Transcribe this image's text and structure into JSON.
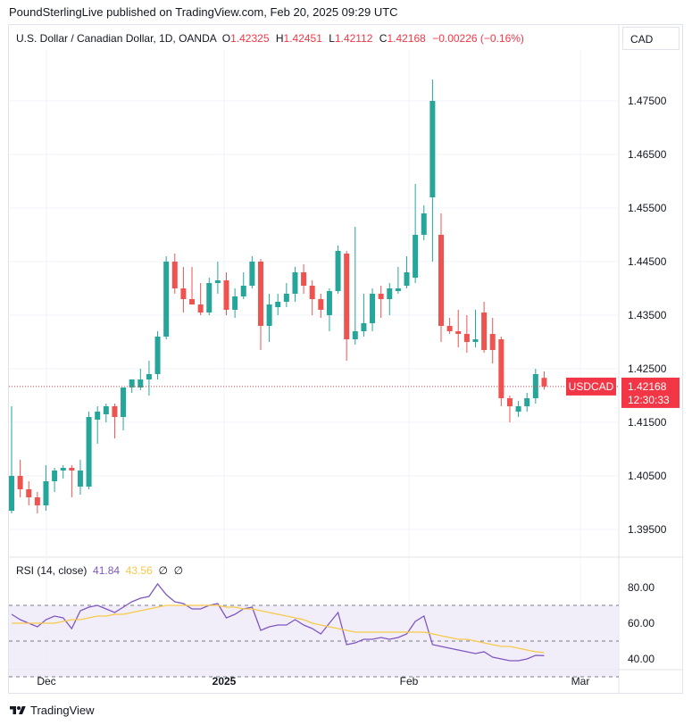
{
  "caption": "PoundSterlingLive published on TradingView.com, Feb 20, 2025 09:29 UTC",
  "legend": {
    "symbol": "U.S. Dollar / Canadian Dollar, 1D, OANDA",
    "o_label": "O",
    "o_value": "1.42325",
    "h_label": "H",
    "h_value": "1.42451",
    "l_label": "L",
    "l_value": "1.42112",
    "c_label": "C",
    "c_value": "1.42168",
    "change": "−0.00226 (−0.16%)"
  },
  "currency_button": "CAD",
  "price_tag": {
    "symbol": "USDCAD",
    "price": "1.42168",
    "countdown": "12:30:33"
  },
  "rsi_legend": {
    "label": "RSI (14, close)",
    "rsi_value": "41.84",
    "ma_value": "43.56",
    "extra1": "∅",
    "extra2": "∅"
  },
  "footer": "TradingView",
  "colors": {
    "up": "#26a69a",
    "down": "#ef5350",
    "rsi": "#7e57c2",
    "rsi_ma": "#f7c948",
    "price_line": "#f23645",
    "band": "#ede7f6"
  },
  "chart_data": [
    {
      "type": "candlestick",
      "title": "U.S. Dollar / Canadian Dollar, 1D, OANDA",
      "y_ticks": [
        "1.47500",
        "1.46500",
        "1.45500",
        "1.44500",
        "1.43500",
        "1.42500",
        "1.41500",
        "1.40500",
        "1.39500"
      ],
      "x_ticks": [
        "Dec",
        "2025",
        "Feb",
        "Mar"
      ],
      "ylim": [
        1.3915,
        1.4835
      ],
      "last_price": 1.42168,
      "candles": [
        {
          "o": 1.3985,
          "h": 1.418,
          "l": 1.398,
          "c": 1.405
        },
        {
          "o": 1.405,
          "h": 1.408,
          "l": 1.401,
          "c": 1.4025
        },
        {
          "o": 1.4025,
          "h": 1.404,
          "l": 1.3995,
          "c": 1.401
        },
        {
          "o": 1.401,
          "h": 1.402,
          "l": 1.398,
          "c": 1.3995
        },
        {
          "o": 1.3995,
          "h": 1.407,
          "l": 1.3985,
          "c": 1.404
        },
        {
          "o": 1.404,
          "h": 1.4065,
          "l": 1.402,
          "c": 1.406
        },
        {
          "o": 1.406,
          "h": 1.407,
          "l": 1.4045,
          "c": 1.4065
        },
        {
          "o": 1.4065,
          "h": 1.407,
          "l": 1.401,
          "c": 1.406
        },
        {
          "o": 1.403,
          "h": 1.408,
          "l": 1.4015,
          "c": 1.406
        },
        {
          "o": 1.403,
          "h": 1.417,
          "l": 1.4025,
          "c": 1.416
        },
        {
          "o": 1.4155,
          "h": 1.418,
          "l": 1.411,
          "c": 1.417
        },
        {
          "o": 1.4165,
          "h": 1.4185,
          "l": 1.415,
          "c": 1.418
        },
        {
          "o": 1.418,
          "h": 1.4185,
          "l": 1.412,
          "c": 1.416
        },
        {
          "o": 1.416,
          "h": 1.421,
          "l": 1.4135,
          "c": 1.4215
        },
        {
          "o": 1.4215,
          "h": 1.423,
          "l": 1.4205,
          "c": 1.423
        },
        {
          "o": 1.4215,
          "h": 1.425,
          "l": 1.421,
          "c": 1.423
        },
        {
          "o": 1.423,
          "h": 1.4265,
          "l": 1.42,
          "c": 1.424
        },
        {
          "o": 1.424,
          "h": 1.432,
          "l": 1.423,
          "c": 1.431
        },
        {
          "o": 1.431,
          "h": 1.446,
          "l": 1.4305,
          "c": 1.445
        },
        {
          "o": 1.445,
          "h": 1.4465,
          "l": 1.439,
          "c": 1.44
        },
        {
          "o": 1.44,
          "h": 1.444,
          "l": 1.4355,
          "c": 1.438
        },
        {
          "o": 1.438,
          "h": 1.444,
          "l": 1.437,
          "c": 1.437
        },
        {
          "o": 1.437,
          "h": 1.441,
          "l": 1.435,
          "c": 1.4355
        },
        {
          "o": 1.4355,
          "h": 1.442,
          "l": 1.435,
          "c": 1.441
        },
        {
          "o": 1.441,
          "h": 1.445,
          "l": 1.439,
          "c": 1.4415
        },
        {
          "o": 1.4415,
          "h": 1.443,
          "l": 1.435,
          "c": 1.436
        },
        {
          "o": 1.436,
          "h": 1.44,
          "l": 1.4345,
          "c": 1.4385
        },
        {
          "o": 1.4385,
          "h": 1.443,
          "l": 1.438,
          "c": 1.4405
        },
        {
          "o": 1.4405,
          "h": 1.446,
          "l": 1.44,
          "c": 1.445
        },
        {
          "o": 1.445,
          "h": 1.4455,
          "l": 1.4285,
          "c": 1.433
        },
        {
          "o": 1.433,
          "h": 1.439,
          "l": 1.43,
          "c": 1.437
        },
        {
          "o": 1.4365,
          "h": 1.439,
          "l": 1.435,
          "c": 1.4375
        },
        {
          "o": 1.4375,
          "h": 1.441,
          "l": 1.4365,
          "c": 1.439
        },
        {
          "o": 1.439,
          "h": 1.444,
          "l": 1.4375,
          "c": 1.443
        },
        {
          "o": 1.443,
          "h": 1.4445,
          "l": 1.439,
          "c": 1.4405
        },
        {
          "o": 1.4405,
          "h": 1.4415,
          "l": 1.435,
          "c": 1.438
        },
        {
          "o": 1.438,
          "h": 1.439,
          "l": 1.4345,
          "c": 1.436
        },
        {
          "o": 1.435,
          "h": 1.44,
          "l": 1.432,
          "c": 1.4395
        },
        {
          "o": 1.4395,
          "h": 1.448,
          "l": 1.439,
          "c": 1.447
        },
        {
          "o": 1.4465,
          "h": 1.447,
          "l": 1.4265,
          "c": 1.4305
        },
        {
          "o": 1.4305,
          "h": 1.4515,
          "l": 1.4295,
          "c": 1.432
        },
        {
          "o": 1.432,
          "h": 1.439,
          "l": 1.431,
          "c": 1.4335
        },
        {
          "o": 1.4335,
          "h": 1.44,
          "l": 1.432,
          "c": 1.439
        },
        {
          "o": 1.439,
          "h": 1.4405,
          "l": 1.4345,
          "c": 1.438
        },
        {
          "o": 1.438,
          "h": 1.441,
          "l": 1.435,
          "c": 1.44
        },
        {
          "o": 1.4395,
          "h": 1.444,
          "l": 1.439,
          "c": 1.44
        },
        {
          "o": 1.4405,
          "h": 1.446,
          "l": 1.44,
          "c": 1.443
        },
        {
          "o": 1.442,
          "h": 1.4595,
          "l": 1.441,
          "c": 1.45
        },
        {
          "o": 1.45,
          "h": 1.4555,
          "l": 1.449,
          "c": 1.454
        },
        {
          "o": 1.457,
          "h": 1.479,
          "l": 1.445,
          "c": 1.475
        },
        {
          "o": 1.45,
          "h": 1.454,
          "l": 1.43,
          "c": 1.433
        },
        {
          "o": 1.433,
          "h": 1.4345,
          "l": 1.4315,
          "c": 1.432
        },
        {
          "o": 1.432,
          "h": 1.436,
          "l": 1.429,
          "c": 1.4315
        },
        {
          "o": 1.4315,
          "h": 1.435,
          "l": 1.428,
          "c": 1.43
        },
        {
          "o": 1.43,
          "h": 1.436,
          "l": 1.429,
          "c": 1.4305
        },
        {
          "o": 1.4355,
          "h": 1.4375,
          "l": 1.428,
          "c": 1.4285
        },
        {
          "o": 1.4315,
          "h": 1.4345,
          "l": 1.426,
          "c": 1.4285
        },
        {
          "o": 1.4305,
          "h": 1.431,
          "l": 1.418,
          "c": 1.4195
        },
        {
          "o": 1.4195,
          "h": 1.42,
          "l": 1.415,
          "c": 1.418
        },
        {
          "o": 1.417,
          "h": 1.419,
          "l": 1.416,
          "c": 1.418
        },
        {
          "o": 1.418,
          "h": 1.4205,
          "l": 1.417,
          "c": 1.4195
        },
        {
          "o": 1.4195,
          "h": 1.425,
          "l": 1.4185,
          "c": 1.424
        },
        {
          "o": 1.4233,
          "h": 1.4245,
          "l": 1.4211,
          "c": 1.4217
        }
      ]
    },
    {
      "type": "line",
      "title": "RSI (14, close)",
      "y_ticks": [
        "80.00",
        "60.00",
        "40.00"
      ],
      "ylim": [
        30,
        82
      ],
      "bands": [
        30,
        50,
        70
      ],
      "series": [
        {
          "name": "RSI",
          "values": [
            65,
            62,
            60,
            58,
            62,
            64,
            63,
            57,
            67,
            69,
            70,
            68,
            66,
            69,
            72,
            74,
            75,
            82,
            76,
            72,
            71,
            68,
            68,
            70,
            71,
            63,
            65,
            68,
            69,
            56,
            58,
            59,
            59,
            62,
            59,
            57,
            54,
            60,
            66,
            48,
            49,
            51,
            51,
            52,
            51,
            52,
            54,
            61,
            64,
            48,
            47,
            46,
            45,
            44,
            43,
            44,
            41,
            40,
            39,
            39,
            40,
            42,
            41.84
          ]
        },
        {
          "name": "MA",
          "values": [
            60,
            60,
            60,
            60,
            60,
            60,
            61,
            62,
            62,
            63,
            64,
            64,
            65,
            65,
            66,
            67,
            68,
            69,
            70,
            70,
            70,
            70,
            70,
            70,
            70,
            69,
            69,
            68,
            68,
            67,
            66,
            65,
            64,
            63,
            62,
            60,
            59,
            58,
            57,
            56,
            55,
            55,
            55,
            55,
            55,
            55,
            55,
            55,
            55,
            54,
            53,
            52,
            51,
            51,
            50,
            49,
            48,
            47,
            47,
            46,
            45,
            44,
            43.56
          ]
        }
      ]
    }
  ]
}
